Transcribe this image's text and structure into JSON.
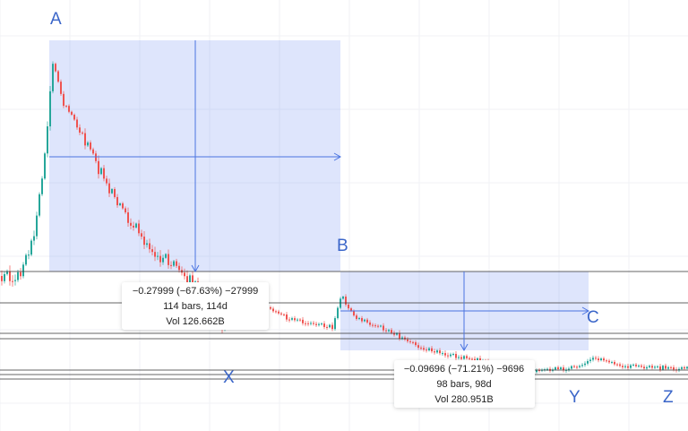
{
  "points": {
    "a": "A",
    "b": "B",
    "c": "C",
    "x": "X",
    "y": "Y",
    "z": "Z"
  },
  "measures": [
    {
      "change": "−0.27999 (−67.63%) −27999",
      "bars": "114 bars, 114d",
      "volume": "Vol 126.662B"
    },
    {
      "change": "−0.09696 (−71.21%) −9696",
      "bars": "98 bars, 98d",
      "volume": "Vol 280.951B"
    }
  ]
}
